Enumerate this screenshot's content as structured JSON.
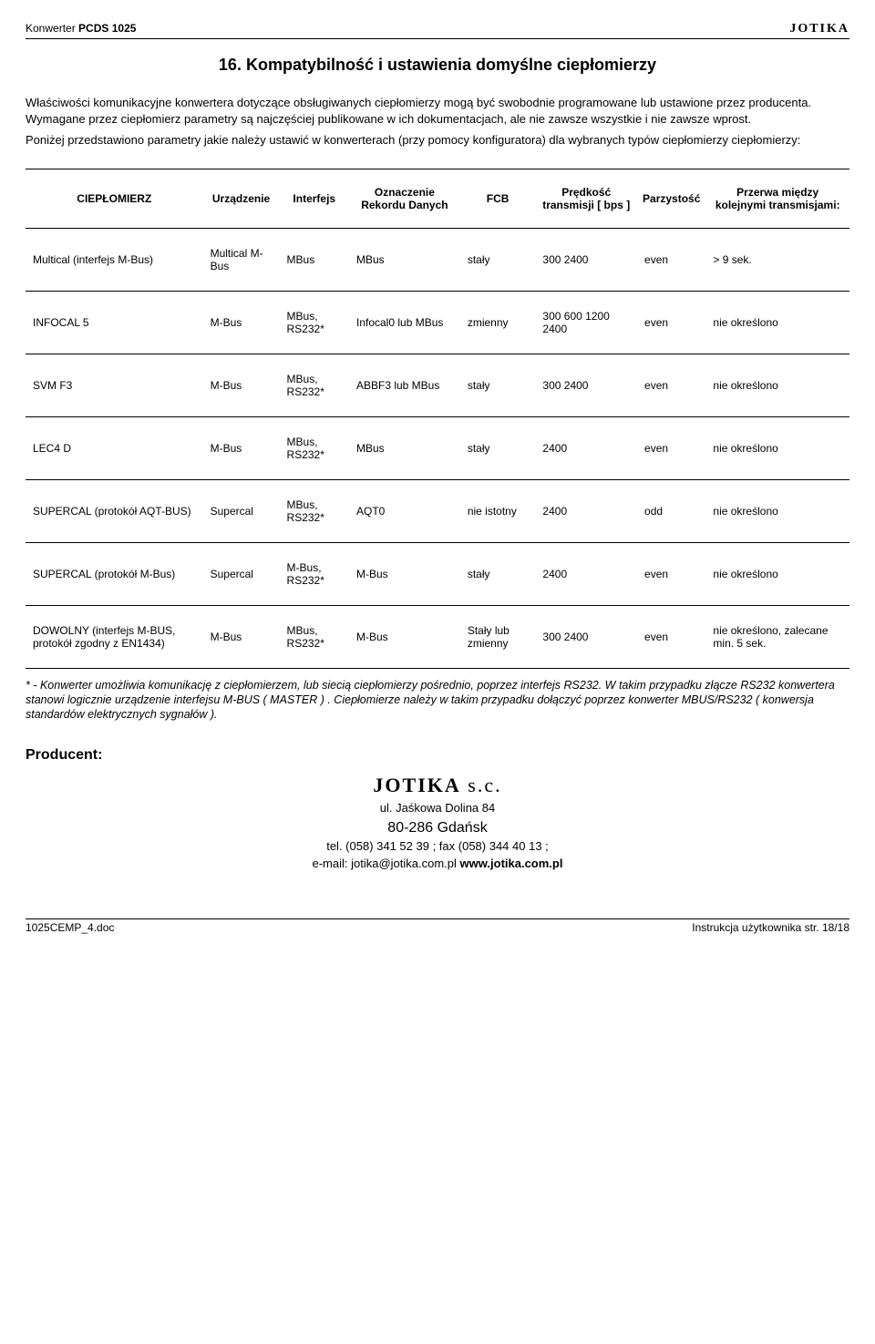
{
  "header": {
    "left_prefix": "Konwerter",
    "left_model": "PCDS 1025",
    "right_brand": "JOTIKA"
  },
  "section_title": "16. Kompatybilność i ustawienia domyślne ciepłomierzy",
  "paragraphs": {
    "p1": "Właściwości komunikacyjne konwertera dotyczące obsługiwanych ciepłomierzy mogą być swobodnie programowane lub ustawione przez producenta. Wymagane przez ciepłomierz parametry są najczęściej publikowane w ich dokumentacjach, ale nie zawsze wszystkie i nie zawsze wprost.",
    "p2": "Poniżej przedstawiono parametry jakie należy ustawić w konwerterach (przy pomocy konfiguratora) dla wybranych typów ciepłomierzy ciepłomierzy:"
  },
  "table": {
    "columns": [
      "CIEPŁOMIERZ",
      "Urządzenie",
      "Interfejs",
      "Oznaczenie Rekordu Danych",
      "FCB",
      "Prędkość transmisji [ bps ]",
      "Parzystość",
      "Przerwa między kolejnymi transmisjami:"
    ],
    "rows": [
      [
        "Multical (interfejs M-Bus)",
        "Multical M-Bus",
        "MBus",
        "MBus",
        "stały",
        "300 2400",
        "even",
        "> 9 sek."
      ],
      [
        "INFOCAL 5",
        "M-Bus",
        "MBus, RS232*",
        "Infocal0 lub MBus",
        "zmienny",
        "300 600 1200 2400",
        "even",
        "nie określono"
      ],
      [
        "SVM F3",
        "M-Bus",
        "MBus, RS232*",
        "ABBF3 lub MBus",
        "stały",
        "300 2400",
        "even",
        "nie określono"
      ],
      [
        "LEC4 D",
        "M-Bus",
        "MBus, RS232*",
        "MBus",
        "stały",
        "2400",
        "even",
        "nie określono"
      ],
      [
        "SUPERCAL (protokół AQT-BUS)",
        "Supercal",
        "MBus, RS232*",
        "AQT0",
        "nie istotny",
        "2400",
        "odd",
        "nie określono"
      ],
      [
        "SUPERCAL (protokół M-Bus)",
        "Supercal",
        "M-Bus, RS232*",
        "M-Bus",
        "stały",
        "2400",
        "even",
        "nie określono"
      ],
      [
        "DOWOLNY (interfejs M-BUS, protokół zgodny z EN1434)",
        "M-Bus",
        "MBus, RS232*",
        "M-Bus",
        "Stały lub zmienny",
        "300 2400",
        "even",
        "nie określono, zalecane min. 5 sek."
      ]
    ]
  },
  "footnote": "* - Konwerter umożliwia komunikację z ciepłomierzem, lub siecią ciepłomierzy pośrednio, poprzez interfejs RS232. W takim przypadku złącze RS232 konwertera stanowi logicznie urządzenie interfejsu M-BUS ( MASTER ) . Ciepłomierze należy w takim przypadku dołączyć poprzez  konwerter MBUS/RS232 ( konwersja standardów elektrycznych sygnałów ).",
  "producer": {
    "label": "Producent:",
    "brand": "JOTIKA",
    "brand_suffix": "s.c.",
    "street": "ul. Jaśkowa Dolina 84",
    "city": "80-286 Gdańsk",
    "phone": "tel. (058) 341 52 39  ; fax (058) 344 40 13  ;",
    "email_prefix": "e-mail: jotika@jotika.com.pl",
    "website": "www.jotika.com.pl"
  },
  "footer": {
    "left": "1025CEMP_4.doc",
    "right": "Instrukcja użytkownika str. 18/18"
  }
}
